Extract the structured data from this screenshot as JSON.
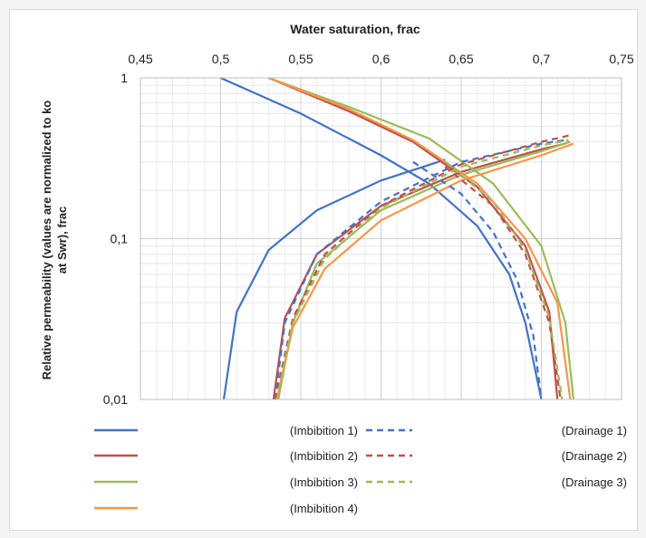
{
  "chart_data": {
    "type": "line",
    "xlabel": "Water saturation, frac",
    "ylabel_line1": "Relative permeability (values are normalized to ko",
    "ylabel_line2": "at Swr), frac",
    "x_axis_position": "top",
    "xlim": [
      0.45,
      0.75
    ],
    "ylim": [
      0.01,
      1
    ],
    "y_scale": "log",
    "x_ticks": [
      "0,45",
      "0,5",
      "0,55",
      "0,6",
      "0,65",
      "0,7",
      "0,75"
    ],
    "x_tick_values": [
      0.45,
      0.5,
      0.55,
      0.6,
      0.65,
      0.7,
      0.75
    ],
    "y_ticks": [
      "0,01",
      "0,1",
      "1"
    ],
    "y_tick_values": [
      0.01,
      0.1,
      1
    ],
    "grid": true,
    "legend_position": "bottom",
    "series": [
      {
        "name": "(Imbibition 1)",
        "style": "solid",
        "color": "#4472c4",
        "group": "imb1",
        "kro": {
          "x": [
            0.5,
            0.55,
            0.6,
            0.63,
            0.66,
            0.68,
            0.69,
            0.7
          ],
          "y": [
            1.0,
            0.6,
            0.33,
            0.22,
            0.12,
            0.06,
            0.03,
            0.01
          ]
        },
        "krw": {
          "x": [
            0.502,
            0.51,
            0.53,
            0.56,
            0.6,
            0.64
          ],
          "y": [
            0.01,
            0.035,
            0.085,
            0.15,
            0.23,
            0.31
          ]
        }
      },
      {
        "name": "(Imbibition 2)",
        "style": "solid",
        "color": "#c0504d",
        "group": "imb2",
        "kro": {
          "x": [
            0.53,
            0.58,
            0.62,
            0.66,
            0.69,
            0.705,
            0.71
          ],
          "y": [
            1.0,
            0.62,
            0.4,
            0.21,
            0.09,
            0.035,
            0.01
          ]
        },
        "krw": {
          "x": [
            0.533,
            0.54,
            0.56,
            0.6,
            0.65,
            0.7,
            0.715
          ],
          "y": [
            0.01,
            0.032,
            0.08,
            0.16,
            0.26,
            0.36,
            0.39
          ]
        }
      },
      {
        "name": "(Imbibition 3)",
        "style": "solid",
        "color": "#9bbb59",
        "group": "imb3",
        "kro": {
          "x": [
            0.53,
            0.58,
            0.63,
            0.67,
            0.7,
            0.715,
            0.72
          ],
          "y": [
            1.0,
            0.66,
            0.42,
            0.22,
            0.09,
            0.03,
            0.01
          ]
        },
        "krw": {
          "x": [
            0.536,
            0.545,
            0.56,
            0.6,
            0.65,
            0.7,
            0.718
          ],
          "y": [
            0.01,
            0.03,
            0.07,
            0.15,
            0.25,
            0.35,
            0.4
          ]
        }
      },
      {
        "name": "(Imbibition 4)",
        "style": "solid",
        "color": "#f79646",
        "group": "imb4",
        "kro": {
          "x": [
            0.53,
            0.58,
            0.62,
            0.66,
            0.69,
            0.71,
            0.718
          ],
          "y": [
            1.0,
            0.64,
            0.41,
            0.22,
            0.1,
            0.04,
            0.01
          ]
        },
        "krw": {
          "x": [
            0.535,
            0.545,
            0.565,
            0.6,
            0.65,
            0.7,
            0.72
          ],
          "y": [
            0.01,
            0.028,
            0.065,
            0.13,
            0.23,
            0.33,
            0.39
          ]
        }
      },
      {
        "name": "(Drainage 1)",
        "style": "dashed",
        "color": "#4472c4",
        "group": "dr1",
        "kro": {
          "x": [
            0.62,
            0.65,
            0.67,
            0.685,
            0.695,
            0.7
          ],
          "y": [
            0.3,
            0.19,
            0.11,
            0.055,
            0.025,
            0.01
          ]
        },
        "krw": {
          "x": [
            0.534,
            0.54,
            0.56,
            0.6,
            0.65,
            0.7,
            0.715
          ],
          "y": [
            0.01,
            0.03,
            0.08,
            0.17,
            0.3,
            0.39,
            0.41
          ]
        }
      },
      {
        "name": "(Drainage 2)",
        "style": "dashed",
        "color": "#c0504d",
        "group": "dr2",
        "kro": {
          "x": [
            0.64,
            0.67,
            0.69,
            0.705,
            0.712
          ],
          "y": [
            0.28,
            0.16,
            0.08,
            0.03,
            0.01
          ]
        },
        "krw": {
          "x": [
            0.534,
            0.545,
            0.565,
            0.6,
            0.65,
            0.7,
            0.718
          ],
          "y": [
            0.01,
            0.032,
            0.08,
            0.16,
            0.29,
            0.4,
            0.44
          ]
        }
      },
      {
        "name": "(Drainage 3)",
        "style": "dashed",
        "color": "#9bbb59",
        "group": "dr3",
        "kro": {
          "x": [
            0.64,
            0.67,
            0.69,
            0.705,
            0.713
          ],
          "y": [
            0.3,
            0.17,
            0.085,
            0.032,
            0.01
          ]
        },
        "krw": {
          "x": [
            0.535,
            0.545,
            0.565,
            0.6,
            0.65,
            0.7,
            0.717
          ],
          "y": [
            0.01,
            0.03,
            0.075,
            0.155,
            0.28,
            0.38,
            0.41
          ]
        }
      }
    ]
  },
  "legend": {
    "rows": [
      {
        "solid_color": "#4472c4",
        "label": "(Imbibition 1)",
        "dash_color": "#4472c4",
        "right_label": "(Drainage 1)"
      },
      {
        "solid_color": "#c0504d",
        "label": "(Imbibition 2)",
        "dash_color": "#c0504d",
        "right_label": "(Drainage 2)"
      },
      {
        "solid_color": "#9bbb59",
        "label": "(Imbibition 3)",
        "dash_color": "#9bbb59",
        "right_label": "(Drainage 3)"
      },
      {
        "solid_color": "#f79646",
        "label": "(Imbibition 4)",
        "dash_color": "",
        "right_label": ""
      }
    ]
  }
}
